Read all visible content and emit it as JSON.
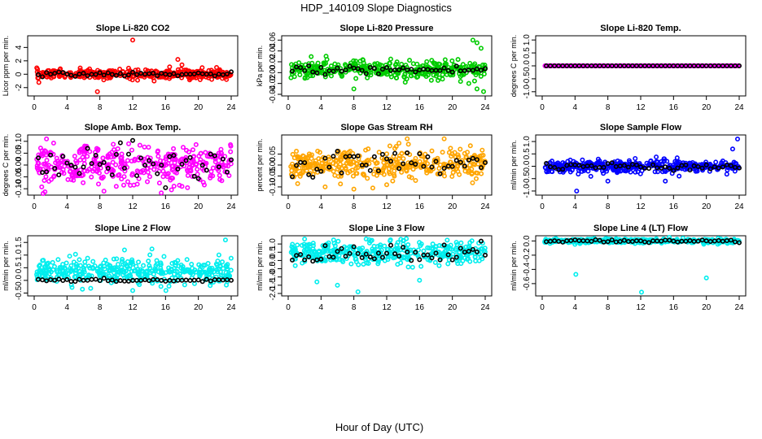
{
  "figure": {
    "title": "HDP_140109  Slope Diagnostics",
    "xlabel": "Hour of Day (UTC)"
  },
  "chart_data": [
    {
      "type": "scatter",
      "title": "Slope Li-820 CO2",
      "ylabel": "Licor ppm per min.",
      "xlim": [
        0,
        24
      ],
      "ylim": [
        -3,
        5.5
      ],
      "xticks": [
        0,
        4,
        8,
        12,
        16,
        20,
        24
      ],
      "yticks": [
        -2,
        0,
        2,
        4
      ],
      "ytick_labels": [
        "-2",
        "0",
        "2",
        "4"
      ],
      "color": "#ff0000",
      "spread_center": 0,
      "spread_sd": 0.35,
      "outliers": [
        [
          12,
          5.1
        ],
        [
          17.5,
          2.2
        ],
        [
          18,
          1.4
        ],
        [
          16.5,
          1.1
        ],
        [
          7.7,
          -2.6
        ],
        [
          11.5,
          0.9
        ]
      ],
      "black_center": 0,
      "black_sd": 0.15
    },
    {
      "type": "scatter",
      "title": "Slope Li-820 Pressure",
      "ylabel": "kPa per min.",
      "xlim": [
        0,
        24
      ],
      "ylim": [
        -0.04,
        0.065
      ],
      "xticks": [
        0,
        4,
        8,
        12,
        16,
        20,
        24
      ],
      "yticks": [
        -0.04,
        -0.02,
        0,
        0.02,
        0.04,
        0.06
      ],
      "ytick_labels": [
        "-0.04",
        "-0.02",
        "0.00",
        "0.02",
        "0.04",
        "0.06"
      ],
      "color": "#00cc00",
      "spread_center": 0.005,
      "spread_sd": 0.008,
      "outliers": [
        [
          22.5,
          0.06
        ],
        [
          23,
          0.055
        ],
        [
          23.5,
          0.045
        ],
        [
          23.8,
          -0.035
        ],
        [
          23,
          -0.03
        ],
        [
          8,
          -0.03
        ],
        [
          22,
          -0.02
        ]
      ],
      "black_center": 0.005,
      "black_sd": 0.004
    },
    {
      "type": "scatter",
      "title": "Slope Li-820 Temp.",
      "ylabel": "degrees C per min.",
      "xlim": [
        0,
        24
      ],
      "ylim": [
        -1.1,
        1.1
      ],
      "xticks": [
        0,
        4,
        8,
        12,
        16,
        20,
        24
      ],
      "yticks": [
        -1,
        -0.5,
        0,
        0.5,
        1
      ],
      "ytick_labels": [
        "-1.0",
        "-0.5",
        "0.0",
        "0.5",
        "1.0"
      ],
      "color": "#ff00ff",
      "spread_center": 0,
      "spread_sd": 0,
      "outliers": [],
      "black_center": 0,
      "black_sd": 0
    },
    {
      "type": "scatter",
      "title": "Slope Amb. Box Temp.",
      "ylabel": "degrees C per min.",
      "xlim": [
        0,
        24
      ],
      "ylim": [
        -0.12,
        0.12
      ],
      "xticks": [
        0,
        4,
        8,
        12,
        16,
        20,
        24
      ],
      "yticks": [
        -0.1,
        -0.05,
        0,
        0.05,
        0.1
      ],
      "ytick_labels": [
        "-0.10",
        "-0.05",
        "0.00",
        "0.05",
        "0.10"
      ],
      "color": "#ff00ff",
      "spread_center": 0,
      "spread_sd": 0.04,
      "outliers": [
        [
          1.5,
          0.11
        ],
        [
          8.5,
          -0.11
        ],
        [
          10,
          -0.09
        ],
        [
          18,
          -0.09
        ]
      ],
      "black_center": 0,
      "black_sd": 0.04
    },
    {
      "type": "scatter",
      "title": "Slope Gas Stream RH",
      "ylabel": "percent per min.",
      "xlim": [
        0,
        24
      ],
      "ylim": [
        -0.13,
        0.13
      ],
      "xticks": [
        0,
        4,
        8,
        12,
        16,
        20,
        24
      ],
      "yticks": [
        -0.1,
        -0.05,
        0,
        0.05
      ],
      "ytick_labels": [
        "-0.10",
        "-0.05",
        "0.00",
        "0.05"
      ],
      "color": "#ffa500",
      "spread_center": 0,
      "spread_sd": 0.035,
      "outliers": [
        [
          14.5,
          0.12
        ],
        [
          13.5,
          0.1
        ],
        [
          19,
          0.12
        ],
        [
          4.5,
          -0.1
        ],
        [
          8,
          -0.11
        ],
        [
          12,
          -0.09
        ]
      ],
      "black_center": 0,
      "black_sd": 0.03
    },
    {
      "type": "scatter",
      "title": "Slope Sample Flow",
      "ylabel": "ml/min per min.",
      "xlim": [
        0,
        24
      ],
      "ylim": [
        -1.1,
        1.2
      ],
      "xticks": [
        0,
        4,
        8,
        12,
        16,
        20,
        24
      ],
      "yticks": [
        -1,
        -0.5,
        0,
        0.5,
        1
      ],
      "ytick_labels": [
        "-1.0",
        "-0.5",
        "0.0",
        "0.5",
        "1.0"
      ],
      "color": "#0000ff",
      "spread_center": 0,
      "spread_sd": 0.12,
      "outliers": [
        [
          23.8,
          1.1
        ],
        [
          23.2,
          0.7
        ],
        [
          4.2,
          -1.0
        ],
        [
          8,
          -0.6
        ],
        [
          15,
          -0.6
        ]
      ],
      "black_center": 0,
      "black_sd": 0.08
    },
    {
      "type": "scatter",
      "title": "Slope Line 2 Flow",
      "ylabel": "ml/min per min.",
      "xlim": [
        0,
        24
      ],
      "ylim": [
        -0.55,
        1.7
      ],
      "xticks": [
        0,
        4,
        8,
        12,
        16,
        20,
        24
      ],
      "yticks": [
        -0.5,
        0,
        0.5,
        1,
        1.5
      ],
      "ytick_labels": [
        "-0.5",
        "0.0",
        "0.5",
        "1.0",
        "1.5"
      ],
      "color": "#00eeee",
      "spread_center": 0.35,
      "spread_sd": 0.25,
      "outliers": [
        [
          23.3,
          1.6
        ],
        [
          11,
          1.2
        ],
        [
          12,
          -0.4
        ]
      ],
      "black_center": 0,
      "black_sd": 0.03
    },
    {
      "type": "scatter",
      "title": "Slope Line 3 Flow",
      "ylabel": "ml/min per min.",
      "xlim": [
        0,
        24
      ],
      "ylim": [
        -2.05,
        1.4
      ],
      "xticks": [
        0,
        4,
        8,
        12,
        16,
        20,
        24
      ],
      "yticks": [
        -2,
        -1.5,
        -1,
        -0.5,
        0,
        0.5,
        1
      ],
      "ytick_labels": [
        "-2.0",
        "-1.5",
        "-1.0",
        "-0.5",
        "0.0",
        "0.5",
        "1.0"
      ],
      "color": "#00eeee",
      "spread_center": 0.45,
      "spread_sd": 0.35,
      "outliers": [
        [
          2,
          1.3
        ],
        [
          9.5,
          1.3
        ],
        [
          14,
          1.2
        ],
        [
          3.5,
          -1.3
        ],
        [
          6,
          -1.5
        ],
        [
          8.5,
          -1.9
        ],
        [
          16,
          -1.2
        ]
      ],
      "black_center": 0.4,
      "black_sd": 0.3
    },
    {
      "type": "scatter",
      "title": "Slope Line 4 (LT) Flow",
      "ylabel": "ml/min per min.",
      "xlim": [
        0,
        24
      ],
      "ylim": [
        -0.75,
        0.05
      ],
      "xticks": [
        0,
        4,
        8,
        12,
        16,
        20,
        24
      ],
      "yticks": [
        -0.6,
        -0.4,
        -0.2,
        0
      ],
      "ytick_labels": [
        "-0.6",
        "-0.4",
        "-0.2",
        "0.0"
      ],
      "color": "#00eeee",
      "spread_center": 0,
      "spread_sd": 0.015,
      "outliers": [
        [
          4.1,
          -0.47
        ],
        [
          20,
          -0.52
        ],
        [
          12.1,
          -0.72
        ]
      ],
      "black_center": 0,
      "black_sd": 0.01
    }
  ]
}
